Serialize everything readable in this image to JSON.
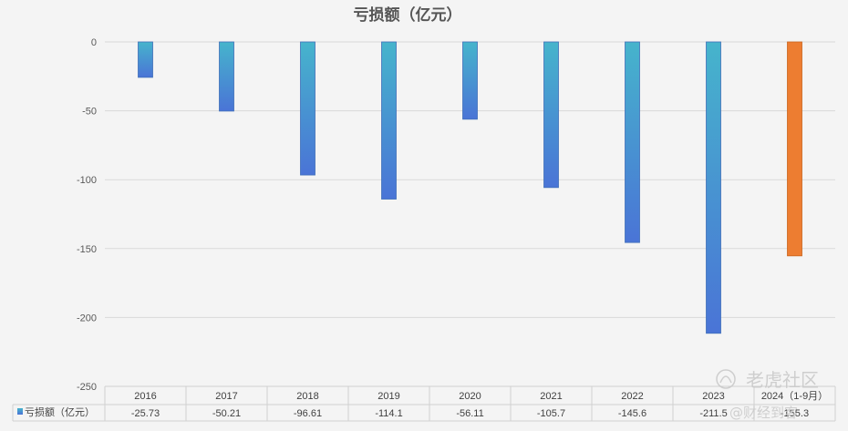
{
  "chart_data": {
    "type": "bar",
    "title": "亏损额（亿元）",
    "categories": [
      "2016",
      "2017",
      "2018",
      "2019",
      "2020",
      "2021",
      "2022",
      "2023",
      "2024（1-9月）"
    ],
    "series": [
      {
        "name": "亏损额（亿元）",
        "values": [
          -25.73,
          -50.21,
          -96.61,
          -114.1,
          -56.11,
          -105.7,
          -145.6,
          -211.5,
          -155.3
        ]
      }
    ],
    "data_labels": [
      "-25.73",
      "-50.21",
      "-96.61",
      "-114.1",
      "-56.11",
      "-105.7",
      "-145.6",
      "-211.5",
      "-155.3"
    ],
    "yticks": [
      "0",
      "-50",
      "-100",
      "-150",
      "-200",
      "-250"
    ],
    "ylim": [
      -250,
      0
    ],
    "grid": true,
    "legend": "data-table-left",
    "colors": {
      "bar_top": "#46b4cc",
      "bar_bottom": "#4a74d6",
      "highlight": "#ed7d31",
      "grid": "#d9d9d9",
      "title": "#555555"
    },
    "highlight_index": 8
  },
  "watermark": {
    "brand": "老虎社区",
    "sub": "@财经到客"
  }
}
